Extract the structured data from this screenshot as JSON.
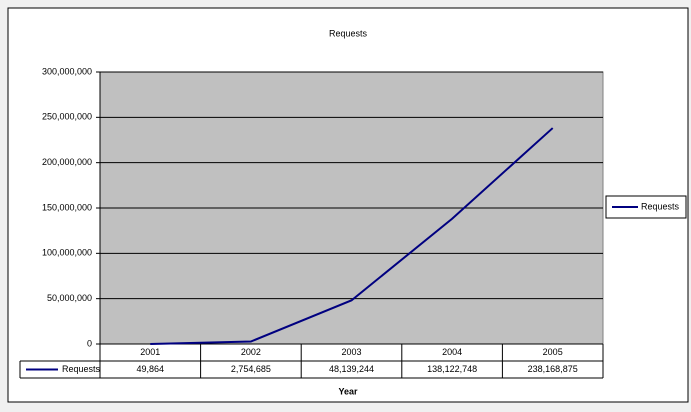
{
  "chart_data": {
    "type": "line",
    "title": "Requests",
    "x_label": "Year",
    "categories": [
      "2001",
      "2002",
      "2003",
      "2004",
      "2005"
    ],
    "series": [
      {
        "name": "Requests",
        "color": "#000080",
        "values": [
          49864,
          2754685,
          48139244,
          138122748,
          238168875
        ],
        "value_labels": [
          "49,864",
          "2,754,685",
          "48,139,244",
          "138,122,748",
          "238,168,875"
        ]
      }
    ],
    "ylim": [
      0,
      300000000
    ],
    "yticks": [
      0,
      {
        "value": 50000000,
        "label": "50,000,000"
      },
      {
        "value": 100000000,
        "label": "100,000,000"
      },
      {
        "value": 150000000,
        "label": "150,000,000"
      },
      {
        "value": 200000000,
        "label": "200,000,000"
      },
      {
        "value": 250000000,
        "label": "250,000,000"
      },
      {
        "value": 300000000,
        "label": "300,000,000"
      }
    ],
    "grid": true,
    "legend": "right",
    "plot_background": "#c0c0c0",
    "data_table": true
  }
}
